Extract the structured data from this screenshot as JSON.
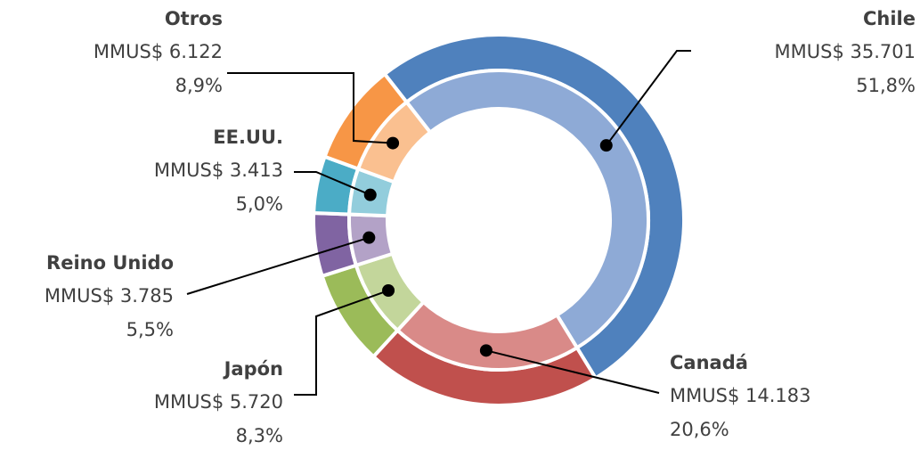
{
  "chart_data": {
    "type": "donut",
    "categories": [
      "Chile",
      "Canadá",
      "Japón",
      "Reino Unido",
      "EE.UU.",
      "Otros"
    ],
    "values": [
      35701,
      14183,
      5720,
      3785,
      3413,
      6122
    ],
    "value_labels": [
      "MMUS$ 35.701",
      "MMUS$ 14.183",
      "MMUS$ 5.720",
      "MMUS$ 3.785",
      "MMUS$ 3.413",
      "MMUS$  6.122"
    ],
    "percent_labels": [
      "51,8%",
      "20,6%",
      "8,3%",
      "5,5%",
      "5,0%",
      "8,9%"
    ],
    "colors": [
      "#4f81bd",
      "#c0504d",
      "#9bbb59",
      "#8064a2",
      "#4bacc6",
      "#f79646"
    ],
    "inner_colors": [
      "#8eaad6",
      "#d98a88",
      "#c3d69b",
      "#b3a2c7",
      "#92cddc",
      "#fac090"
    ]
  }
}
